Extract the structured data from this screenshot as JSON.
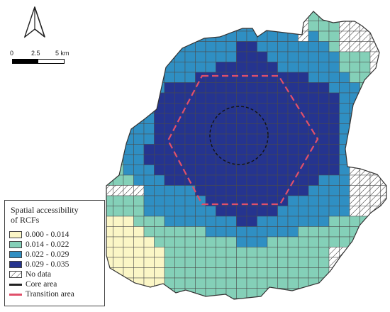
{
  "north_arrow": {
    "icon": "north-arrow-icon"
  },
  "scale": {
    "labels": [
      "0",
      "2.5",
      "5 km"
    ]
  },
  "legend": {
    "title_line1": "Spatial accessibility",
    "title_line2": "of RCFs",
    "classes": [
      {
        "label": "0.000 - 0.014",
        "color": "#fbf6c6",
        "level": 1
      },
      {
        "label": "0.014 - 0.022",
        "color": "#84d0b8",
        "level": 2
      },
      {
        "label": "0.022 - 0.029",
        "color": "#2f8fc3",
        "level": 3
      },
      {
        "label": "0.029 - 0.035",
        "color": "#25348f",
        "level": 4
      }
    ],
    "no_data": {
      "label": "No data",
      "pattern": "diagonal-hatch"
    },
    "core_area": {
      "label": "Core area",
      "color": "#222222",
      "style": "dashed-circle"
    },
    "transition_area": {
      "label": "Transition area",
      "color": "#e0506a",
      "style": "dashed-hexagon"
    }
  }
}
